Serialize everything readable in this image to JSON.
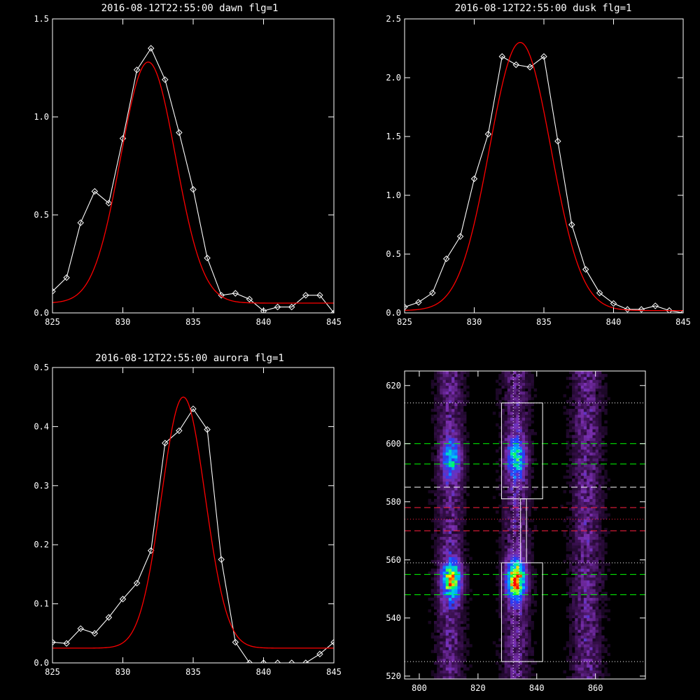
{
  "chart_data": [
    {
      "type": "line",
      "title": "2016-08-12T22:55:00 dawn flg=1",
      "xlim": [
        825,
        845
      ],
      "ylim": [
        0,
        1.5
      ],
      "xticks": [
        "825",
        "830",
        "835",
        "840",
        "845"
      ],
      "yticks": [
        "0.0",
        "0.5",
        "1.0",
        "1.5"
      ],
      "series": [
        {
          "role": "measured",
          "color": "#ffffff",
          "marker": "diamond",
          "x": [
            825,
            826,
            827,
            828,
            829,
            830,
            831,
            832,
            833,
            834,
            835,
            836,
            837,
            838,
            839,
            840,
            841,
            842,
            843,
            844,
            845
          ],
          "y": [
            0.11,
            0.18,
            0.46,
            0.62,
            0.56,
            0.89,
            1.24,
            1.35,
            1.19,
            0.92,
            0.63,
            0.28,
            0.09,
            0.1,
            0.07,
            0.01,
            0.03,
            0.03,
            0.09,
            0.09,
            0.0
          ]
        },
        {
          "role": "fit",
          "color": "#ff0000",
          "kind": "gaussian",
          "amplitude": 1.23,
          "center": 831.8,
          "sigma": 1.95,
          "offset": 0.05
        }
      ]
    },
    {
      "type": "line",
      "title": "2016-08-12T22:55:00 dusk flg=1",
      "xlim": [
        825,
        845
      ],
      "ylim": [
        0,
        2.5
      ],
      "xticks": [
        "825",
        "830",
        "835",
        "840",
        "845"
      ],
      "yticks": [
        "0.0",
        "0.5",
        "1.0",
        "1.5",
        "2.0",
        "2.5"
      ],
      "series": [
        {
          "role": "measured",
          "color": "#ffffff",
          "marker": "diamond",
          "x": [
            825,
            826,
            827,
            828,
            829,
            830,
            831,
            832,
            833,
            834,
            835,
            836,
            837,
            838,
            839,
            840,
            841,
            842,
            843,
            844,
            845
          ],
          "y": [
            0.05,
            0.09,
            0.17,
            0.46,
            0.65,
            1.14,
            1.52,
            2.18,
            2.11,
            2.09,
            2.18,
            1.46,
            0.75,
            0.37,
            0.17,
            0.08,
            0.03,
            0.03,
            0.06,
            0.02,
            0.0
          ]
        },
        {
          "role": "fit",
          "color": "#ff0000",
          "kind": "gaussian",
          "amplitude": 2.28,
          "center": 833.3,
          "sigma": 2.2,
          "offset": 0.02
        }
      ]
    },
    {
      "type": "line",
      "title": "2016-08-12T22:55:00 aurora flg=1",
      "xlim": [
        825,
        845
      ],
      "ylim": [
        0,
        0.5
      ],
      "xticks": [
        "825",
        "830",
        "835",
        "840",
        "845"
      ],
      "yticks": [
        "0.0",
        "0.1",
        "0.2",
        "0.3",
        "0.4",
        "0.5"
      ],
      "series": [
        {
          "role": "measured",
          "color": "#ffffff",
          "marker": "diamond",
          "x": [
            825,
            826,
            827,
            828,
            829,
            830,
            831,
            832,
            833,
            834,
            835,
            836,
            837,
            838,
            839,
            840,
            841,
            842,
            843,
            844,
            845
          ],
          "y": [
            0.035,
            0.033,
            0.058,
            0.05,
            0.077,
            0.108,
            0.135,
            0.19,
            0.372,
            0.393,
            0.43,
            0.395,
            0.175,
            0.035,
            0.0,
            0.0,
            0.0,
            0.0,
            0.0,
            0.015,
            0.035
          ]
        },
        {
          "role": "fit",
          "color": "#ff0000",
          "kind": "gaussian",
          "amplitude": 0.425,
          "center": 834.3,
          "sigma": 1.55,
          "offset": 0.025
        }
      ]
    },
    {
      "type": "heatmap",
      "title": "",
      "xlim": [
        795,
        877
      ],
      "ylim": [
        519,
        625
      ],
      "xticks": [
        "800",
        "820",
        "840",
        "860"
      ],
      "yticks": [
        "520",
        "540",
        "560",
        "580",
        "600",
        "620"
      ],
      "colormap": [
        "#000000",
        "#3a1050",
        "#7a2fb0",
        "#2040ff",
        "#00c0ff",
        "#00ff60",
        "#ffff00",
        "#ff0000"
      ],
      "emission_columns": [
        {
          "x": 810.5,
          "width": 7
        },
        {
          "x": 833,
          "width": 7
        },
        {
          "x": 857,
          "width": 8
        }
      ],
      "bright_spots": [
        {
          "x": 833,
          "y": 595,
          "intensity": 0.6
        },
        {
          "x": 811,
          "y": 595,
          "intensity": 0.5
        },
        {
          "x": 833,
          "y": 553,
          "intensity": 1.0
        },
        {
          "x": 811,
          "y": 553,
          "intensity": 0.85
        }
      ],
      "boxes": [
        {
          "x": [
            828,
            842
          ],
          "y": [
            581,
            614
          ],
          "color": "#ffffff"
        },
        {
          "x": [
            828,
            842
          ],
          "y": [
            525,
            559
          ],
          "color": "#ffffff"
        },
        {
          "x": [
            834.5,
            836.5
          ],
          "y": [
            559,
            581
          ],
          "color": "#ffffff"
        }
      ],
      "hlines": [
        {
          "y": 614,
          "color": "#ffffff",
          "style": "dotted"
        },
        {
          "y": 600,
          "color": "#00ff00",
          "style": "dashed"
        },
        {
          "y": 593,
          "color": "#00ff00",
          "style": "dashed"
        },
        {
          "y": 585,
          "color": "#ffffff",
          "style": "dashed"
        },
        {
          "y": 578,
          "color": "#ff2040",
          "style": "dashed"
        },
        {
          "y": 574,
          "color": "#ff2040",
          "style": "dotted"
        },
        {
          "y": 570,
          "color": "#ff2040",
          "style": "dashed"
        },
        {
          "y": 559,
          "color": "#ffffff",
          "style": "dotted"
        },
        {
          "y": 555,
          "color": "#00ff00",
          "style": "dashed"
        },
        {
          "y": 548,
          "color": "#00ff00",
          "style": "dashed"
        },
        {
          "y": 525,
          "color": "#ffffff",
          "style": "dotted"
        }
      ],
      "vlines": [
        {
          "x": 832,
          "color": "#ffffff",
          "style": "dotted"
        },
        {
          "x": 834,
          "color": "#ffffff",
          "style": "dotted"
        }
      ]
    }
  ]
}
